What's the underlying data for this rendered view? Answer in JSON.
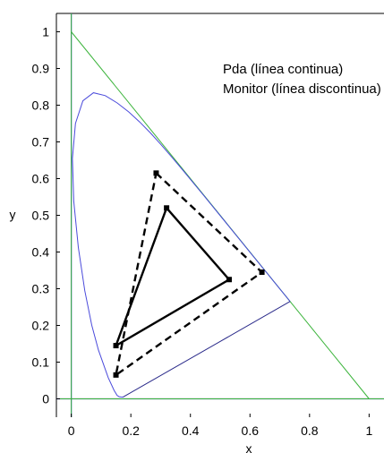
{
  "chart_data": {
    "type": "line",
    "xlabel": "x",
    "ylabel": "y",
    "xlim": [
      -0.05,
      1.05
    ],
    "ylim": [
      -0.05,
      1.05
    ],
    "x_ticks": [
      0,
      0.2,
      0.4,
      0.6,
      0.8,
      1
    ],
    "y_ticks": [
      0,
      0.1,
      0.2,
      0.3,
      0.4,
      0.5,
      0.6,
      0.7,
      0.8,
      0.9,
      1
    ],
    "x_tick_labels": [
      "0",
      "0.2",
      "0.4",
      "0.6",
      "0.8",
      "1"
    ],
    "y_tick_labels": [
      "0",
      "0.1",
      "0.2",
      "0.3",
      "0.4",
      "0.5",
      "0.6",
      "0.7",
      "0.8",
      "0.9",
      "1"
    ],
    "grid": false,
    "legend_lines": [
      "Pda (línea continua)",
      "Monitor (línea discontinua)"
    ],
    "legend_placement": "top-right",
    "colors": {
      "locus": "#4a4adb",
      "reference": "#3cb43c",
      "gamut": "#000000",
      "purple_line": "#2a2a8a"
    },
    "spectral_locus": {
      "x": [
        0.1741,
        0.1738,
        0.173,
        0.1707,
        0.1666,
        0.1611,
        0.154,
        0.144,
        0.1241,
        0.0913,
        0.0687,
        0.0454,
        0.0235,
        0.0082,
        0.0039,
        0.0139,
        0.0389,
        0.0743,
        0.1142,
        0.1547,
        0.1929,
        0.2296,
        0.2658,
        0.3016,
        0.3373,
        0.3731,
        0.4087,
        0.4441,
        0.4788,
        0.5125,
        0.5448,
        0.5752,
        0.6029,
        0.627,
        0.6482,
        0.6658,
        0.6801,
        0.6915,
        0.7006,
        0.7079,
        0.714,
        0.719,
        0.723,
        0.726,
        0.7283,
        0.73,
        0.7347
      ],
      "y": [
        0.005,
        0.0049,
        0.0048,
        0.0048,
        0.0051,
        0.0058,
        0.009,
        0.023,
        0.0578,
        0.1327,
        0.2007,
        0.295,
        0.4127,
        0.5384,
        0.6548,
        0.7502,
        0.812,
        0.8338,
        0.8262,
        0.8059,
        0.7816,
        0.7543,
        0.7243,
        0.6923,
        0.6589,
        0.6245,
        0.5896,
        0.5547,
        0.5202,
        0.4866,
        0.4544,
        0.4242,
        0.3965,
        0.3725,
        0.3514,
        0.334,
        0.3197,
        0.3083,
        0.2993,
        0.292,
        0.2859,
        0.2809,
        0.277,
        0.274,
        0.2717,
        0.27,
        0.2653
      ]
    },
    "series": [
      {
        "name": "Pda (línea continua)",
        "style": "solid",
        "x": [
          0.32,
          0.53,
          0.15,
          0.32
        ],
        "y": [
          0.52,
          0.325,
          0.145,
          0.52
        ]
      },
      {
        "name": "Monitor (línea discontinua)",
        "style": "dashed",
        "x": [
          0.285,
          0.64,
          0.15,
          0.285
        ],
        "y": [
          0.615,
          0.345,
          0.065,
          0.615
        ]
      }
    ]
  }
}
